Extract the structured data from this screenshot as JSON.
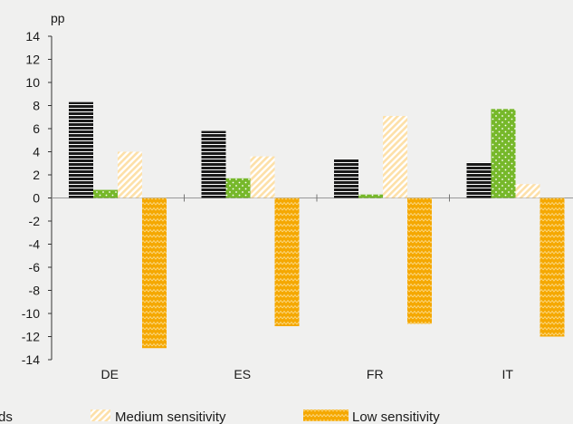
{
  "chart_data": {
    "type": "bar",
    "title": "",
    "ylabel": "pp",
    "xlabel": "",
    "ylim": [
      -14,
      14
    ],
    "yticks": [
      14,
      12,
      10,
      8,
      6,
      4,
      2,
      0,
      -2,
      -4,
      -6,
      -8,
      -10,
      -12,
      -14
    ],
    "categories": [
      "DE",
      "ES",
      "FR",
      "IT"
    ],
    "grid": false,
    "legend_position": "bottom",
    "series": [
      {
        "name": "",
        "legend_label": "ds",
        "values": [
          8.3,
          5.8,
          3.4,
          3.1
        ],
        "color": "#1a1a1a",
        "pattern": "horizontal-stripes"
      },
      {
        "name": "",
        "values": [
          0.7,
          1.7,
          0.3,
          7.7
        ],
        "color": "#76b82a",
        "pattern": "dots"
      },
      {
        "name": "Medium sensitivity",
        "legend_label": "Medium sensitivity",
        "values": [
          4.0,
          3.6,
          7.1,
          1.2
        ],
        "color": "#fde3b0",
        "pattern": "diagonal-stripes"
      },
      {
        "name": "Low sensitivity",
        "legend_label": "Low sensitivity",
        "values": [
          -13.0,
          -11.1,
          -10.9,
          -12.0
        ],
        "color": "#f5a800",
        "pattern": "zigzag"
      }
    ]
  }
}
